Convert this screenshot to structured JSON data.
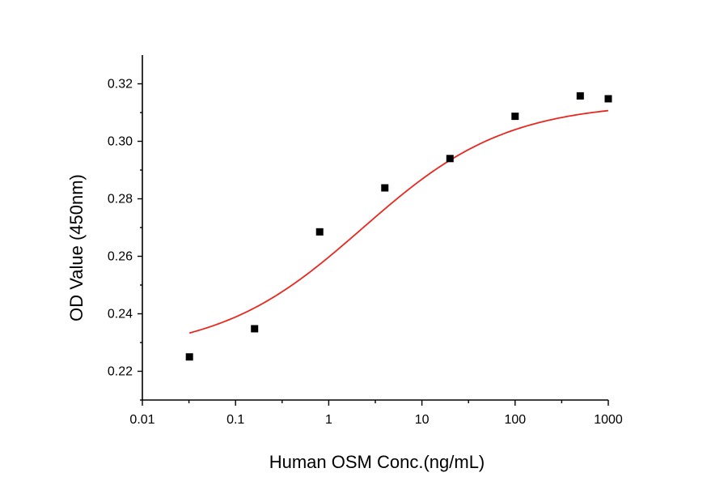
{
  "chart_data": {
    "type": "scatter",
    "title": "",
    "xlabel": "Human OSM Conc.(ng/mL)",
    "ylabel": "OD Value (450nm)",
    "xscale": "log",
    "xlim": [
      0.01,
      1000
    ],
    "ylim": [
      0.21,
      0.33
    ],
    "x_ticks": [
      0.01,
      0.1,
      1,
      10,
      100,
      1000
    ],
    "x_tick_labels": [
      "0.01",
      "0.1",
      "1",
      "10",
      "100",
      "1000"
    ],
    "y_ticks": [
      0.22,
      0.24,
      0.26,
      0.28,
      0.3,
      0.32
    ],
    "y_tick_labels": [
      "0.22",
      "0.24",
      "0.26",
      "0.28",
      "0.30",
      "0.32"
    ],
    "grid": false,
    "series": [
      {
        "kind": "points",
        "marker": "square",
        "color": "#000000",
        "x": [
          0.032,
          0.16,
          0.8,
          4,
          20,
          100,
          500,
          1000
        ],
        "y": [
          0.225,
          0.2348,
          0.2685,
          0.2838,
          0.294,
          0.3087,
          0.3158,
          0.3148
        ]
      },
      {
        "kind": "fit",
        "color": "#e8281e",
        "model": "4PL",
        "params": {
          "bottom": 0.226,
          "top": 0.3135,
          "ec50": 2.3,
          "hill": 0.56
        },
        "x_range": [
          0.032,
          1000
        ]
      }
    ]
  }
}
